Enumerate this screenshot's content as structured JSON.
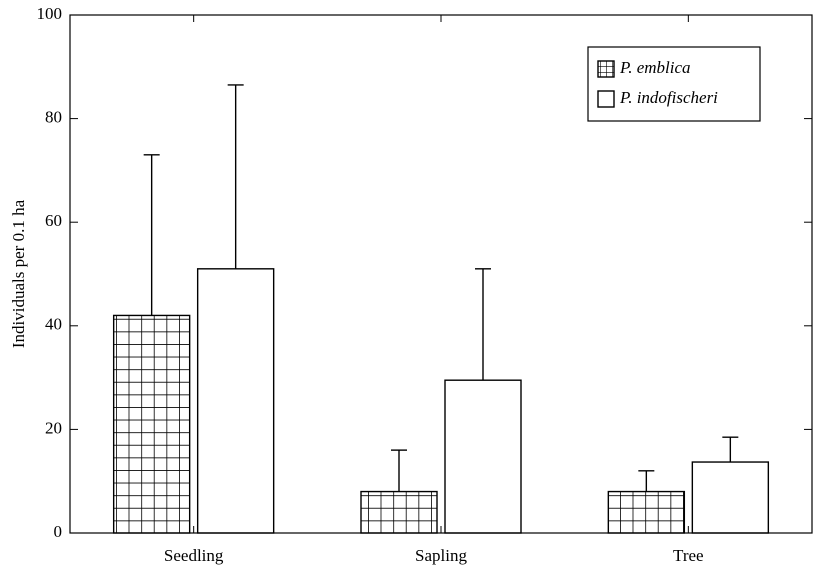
{
  "chart_data": {
    "type": "bar",
    "y_label": "Individuals per 0.1 ha",
    "categories": [
      "Seedling",
      "Sapling",
      "Tree"
    ],
    "series": [
      {
        "name": "P. emblica",
        "color": "#000000",
        "hatch": "grid",
        "values": [
          42,
          8,
          8
        ],
        "errors": [
          31,
          8,
          4
        ]
      },
      {
        "name": "P. indofischeri",
        "color": "#000000",
        "hatch": "none",
        "values": [
          51,
          29.5,
          13.7
        ],
        "errors": [
          35.5,
          21.5,
          4.8
        ]
      }
    ],
    "ylim": [
      0,
      100
    ],
    "yticks": [
      0,
      20,
      40,
      60,
      80,
      100
    ],
    "grid": false,
    "legend": "upper right"
  }
}
